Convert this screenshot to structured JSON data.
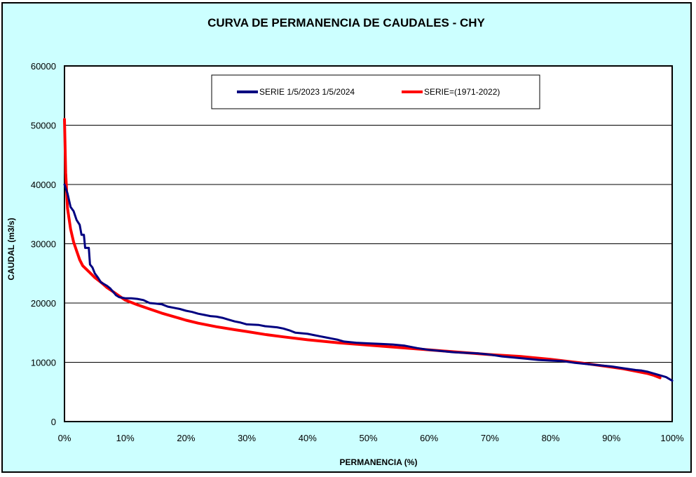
{
  "chart_data": {
    "type": "line",
    "title": "CURVA DE PERMANENCIA DE CAUDALES - CHY",
    "xlabel": "PERMANENCIA (%)",
    "ylabel": "CAUDAL  (m3/s)",
    "xlim": [
      0,
      100
    ],
    "ylim": [
      0,
      60000
    ],
    "x_ticks": [
      0,
      10,
      20,
      30,
      40,
      50,
      60,
      70,
      80,
      90,
      100
    ],
    "x_tick_labels": [
      "0%",
      "10%",
      "20%",
      "30%",
      "40%",
      "50%",
      "60%",
      "70%",
      "80%",
      "90%",
      "100%"
    ],
    "y_ticks": [
      0,
      10000,
      20000,
      30000,
      40000,
      50000,
      60000
    ],
    "y_tick_labels": [
      "0",
      "10000",
      "20000",
      "30000",
      "40000",
      "50000",
      "60000"
    ],
    "grid": "horizontal",
    "legend_position": "top",
    "plot_background": "#ffffff",
    "frame_background": "#ccffff",
    "series": [
      {
        "name": "SERIE 1/5/2023 1/5/2024",
        "color": "#000080",
        "points": [
          [
            0,
            40000
          ],
          [
            0.5,
            38500
          ],
          [
            1,
            36200
          ],
          [
            1.5,
            35500
          ],
          [
            2,
            34000
          ],
          [
            2.5,
            33200
          ],
          [
            2.8,
            31500
          ],
          [
            3.2,
            31500
          ],
          [
            3.4,
            29300
          ],
          [
            4,
            29300
          ],
          [
            4.2,
            26500
          ],
          [
            4.6,
            26000
          ],
          [
            5,
            25000
          ],
          [
            5.5,
            24300
          ],
          [
            6,
            23500
          ],
          [
            7,
            22900
          ],
          [
            7.5,
            22500
          ],
          [
            8.5,
            21300
          ],
          [
            9,
            21000
          ],
          [
            10,
            20800
          ],
          [
            11,
            20800
          ],
          [
            12,
            20700
          ],
          [
            13,
            20500
          ],
          [
            14,
            20000
          ],
          [
            15,
            19900
          ],
          [
            16,
            19800
          ],
          [
            17,
            19400
          ],
          [
            18,
            19200
          ],
          [
            19,
            19000
          ],
          [
            20,
            18700
          ],
          [
            21,
            18500
          ],
          [
            22,
            18200
          ],
          [
            23,
            18000
          ],
          [
            24,
            17800
          ],
          [
            25,
            17700
          ],
          [
            26,
            17500
          ],
          [
            27,
            17200
          ],
          [
            28,
            16900
          ],
          [
            29,
            16700
          ],
          [
            30,
            16400
          ],
          [
            32,
            16300
          ],
          [
            33,
            16100
          ],
          [
            35,
            15900
          ],
          [
            36,
            15700
          ],
          [
            37,
            15400
          ],
          [
            38,
            15000
          ],
          [
            40,
            14800
          ],
          [
            41,
            14600
          ],
          [
            42,
            14400
          ],
          [
            43,
            14200
          ],
          [
            44,
            14000
          ],
          [
            45,
            13800
          ],
          [
            46,
            13500
          ],
          [
            48,
            13300
          ],
          [
            50,
            13200
          ],
          [
            52,
            13100
          ],
          [
            54,
            13000
          ],
          [
            56,
            12800
          ],
          [
            58,
            12400
          ],
          [
            60,
            12100
          ],
          [
            62,
            11900
          ],
          [
            64,
            11700
          ],
          [
            66,
            11600
          ],
          [
            68,
            11500
          ],
          [
            70,
            11300
          ],
          [
            72,
            11000
          ],
          [
            74,
            10800
          ],
          [
            76,
            10600
          ],
          [
            78,
            10400
          ],
          [
            80,
            10300
          ],
          [
            82,
            10200
          ],
          [
            84,
            9900
          ],
          [
            86,
            9700
          ],
          [
            88,
            9500
          ],
          [
            90,
            9300
          ],
          [
            92,
            9000
          ],
          [
            94,
            8700
          ],
          [
            95,
            8600
          ],
          [
            96,
            8400
          ],
          [
            97,
            8100
          ],
          [
            98,
            7800
          ],
          [
            99,
            7500
          ],
          [
            100,
            6900
          ]
        ]
      },
      {
        "name": "SERIE=(1971-2022)",
        "color": "#ff0000",
        "points": [
          [
            0,
            51000
          ],
          [
            0.2,
            42000
          ],
          [
            0.5,
            36000
          ],
          [
            1,
            32500
          ],
          [
            1.5,
            30300
          ],
          [
            2,
            28800
          ],
          [
            2.5,
            27300
          ],
          [
            3,
            26300
          ],
          [
            4,
            25300
          ],
          [
            5,
            24300
          ],
          [
            6,
            23500
          ],
          [
            7,
            22600
          ],
          [
            8,
            21900
          ],
          [
            9,
            21200
          ],
          [
            10,
            20500
          ],
          [
            12,
            19700
          ],
          [
            14,
            19000
          ],
          [
            16,
            18300
          ],
          [
            18,
            17700
          ],
          [
            20,
            17100
          ],
          [
            22,
            16600
          ],
          [
            25,
            16000
          ],
          [
            28,
            15500
          ],
          [
            30,
            15200
          ],
          [
            33,
            14700
          ],
          [
            36,
            14300
          ],
          [
            40,
            13800
          ],
          [
            45,
            13300
          ],
          [
            50,
            12900
          ],
          [
            55,
            12500
          ],
          [
            60,
            12100
          ],
          [
            65,
            11700
          ],
          [
            70,
            11300
          ],
          [
            75,
            11000
          ],
          [
            80,
            10500
          ],
          [
            85,
            9900
          ],
          [
            90,
            9200
          ],
          [
            92,
            8900
          ],
          [
            94,
            8500
          ],
          [
            96,
            8100
          ],
          [
            97,
            7800
          ],
          [
            98,
            7400
          ]
        ]
      }
    ]
  }
}
